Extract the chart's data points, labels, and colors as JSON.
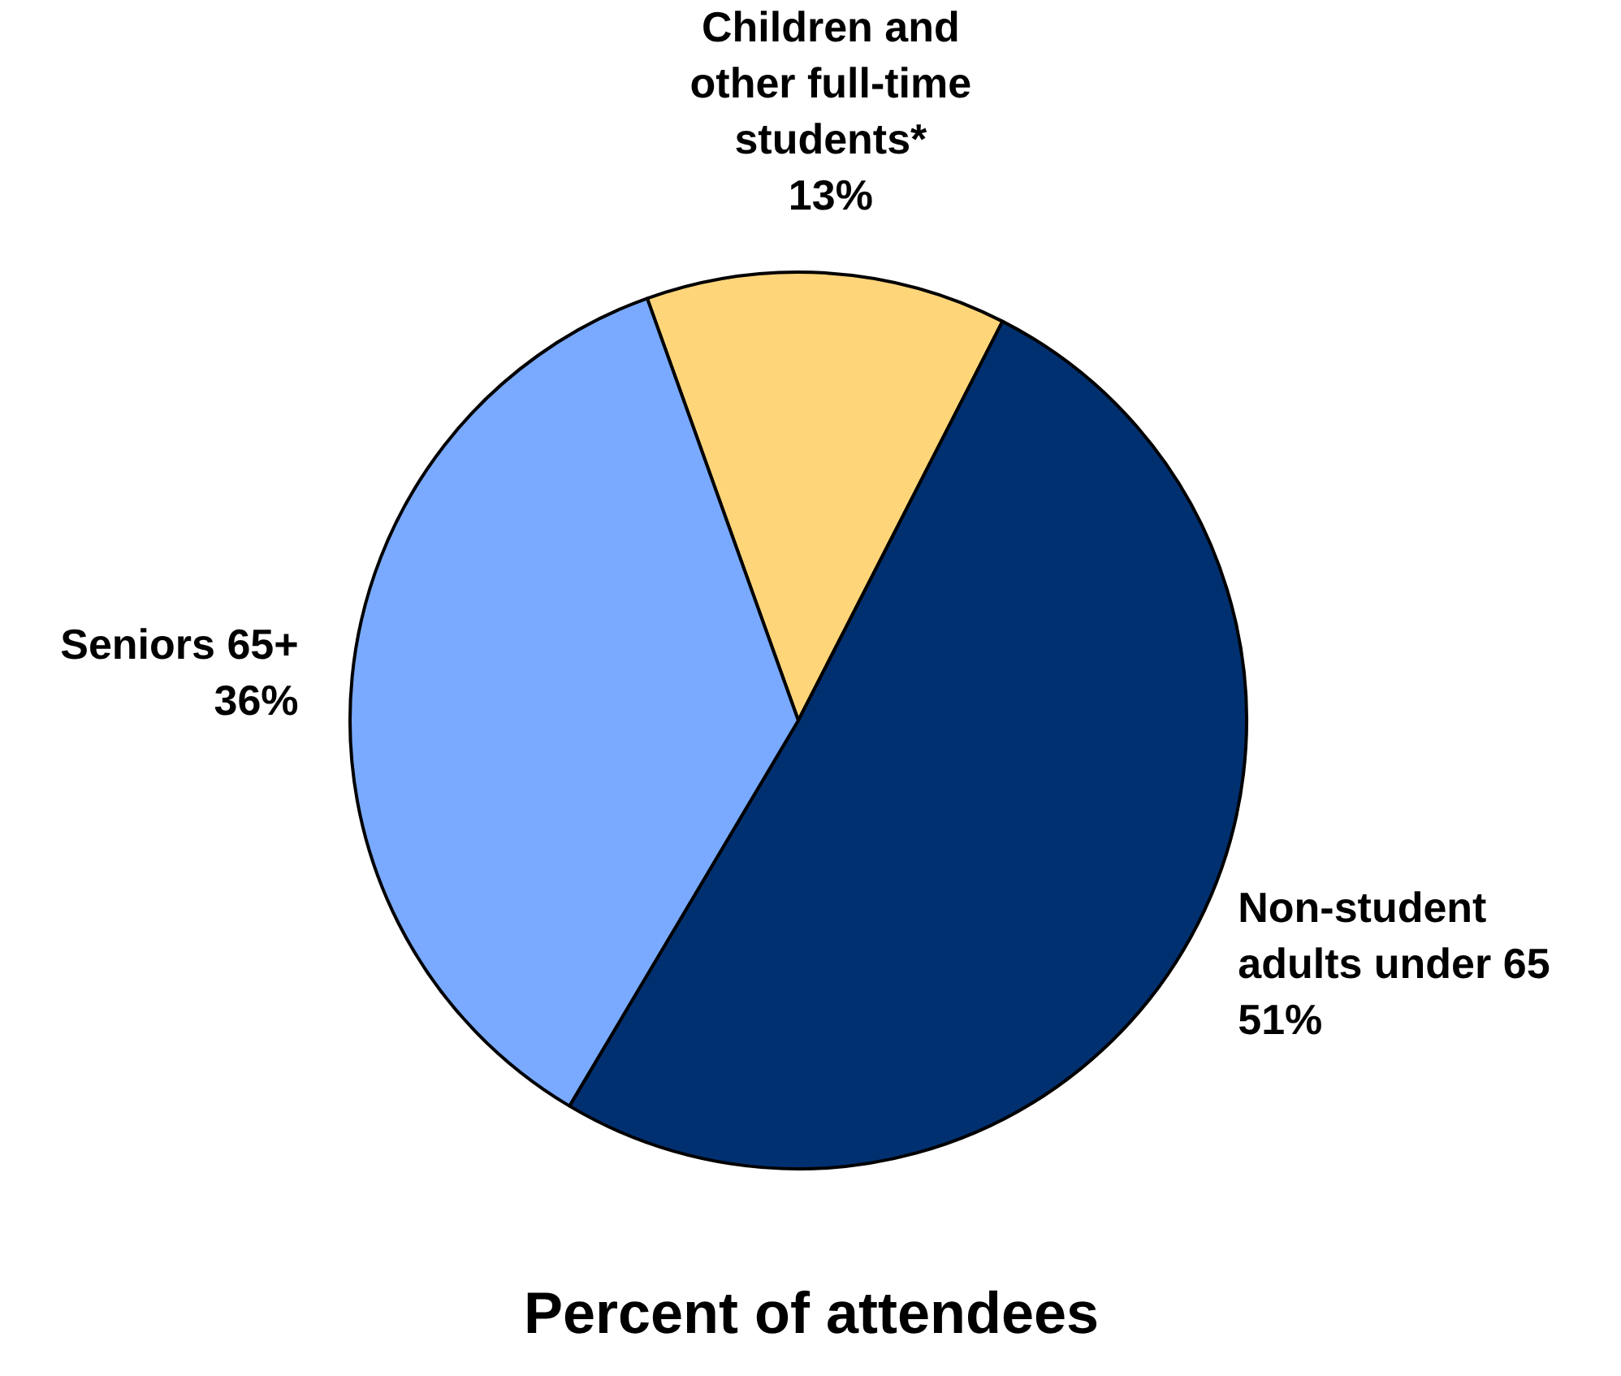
{
  "chart_data": {
    "type": "pie",
    "title": "Percent of attendees",
    "categories": [
      "Children and\nother full-time\nstudents*",
      "Non-student\nadults under 65",
      "Seniors 65+"
    ],
    "values": [
      13,
      51,
      36
    ],
    "value_labels": [
      "13%",
      "51%",
      "36%"
    ],
    "colors": [
      "#ffd57a",
      "#003070",
      "#7aaaff"
    ]
  }
}
